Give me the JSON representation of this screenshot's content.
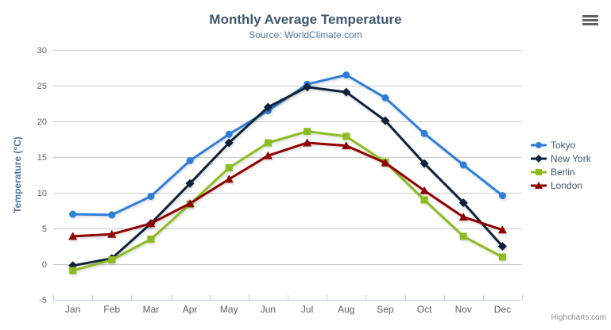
{
  "title": "Monthly Average Temperature",
  "subtitle": "Source: WorldClimate.com",
  "credits": "Highcharts.com",
  "context_menu_icon": "hamburger-icon",
  "colors": {
    "title": "#3e576f",
    "subtitle": "#4d759e",
    "axis_title": "#4d759e",
    "tick_labels": "#606060",
    "grid_line": "#cccccc",
    "x_axis_line": "#c0d0e0",
    "legend_text": "#3e576f",
    "credit_text": "#909090"
  },
  "chart_data": {
    "type": "line",
    "title": "Monthly Average Temperature",
    "subtitle": "Source: WorldClimate.com",
    "categories": [
      "Jan",
      "Feb",
      "Mar",
      "Apr",
      "May",
      "Jun",
      "Jul",
      "Aug",
      "Sep",
      "Oct",
      "Nov",
      "Dec"
    ],
    "series": [
      {
        "name": "Tokyo",
        "color": "#2f7ed8",
        "marker": "circle",
        "values": [
          7.0,
          6.9,
          9.5,
          14.5,
          18.2,
          21.5,
          25.2,
          26.5,
          23.3,
          18.3,
          13.9,
          9.6
        ]
      },
      {
        "name": "New York",
        "color": "#0d233a",
        "marker": "diamond",
        "values": [
          -0.2,
          0.8,
          5.7,
          11.3,
          17.0,
          22.0,
          24.8,
          24.1,
          20.1,
          14.1,
          8.6,
          2.5
        ]
      },
      {
        "name": "Berlin",
        "color": "#8bbc21",
        "marker": "square",
        "values": [
          -0.9,
          0.6,
          3.5,
          8.4,
          13.5,
          17.0,
          18.6,
          17.9,
          14.3,
          9.0,
          3.9,
          1.0
        ]
      },
      {
        "name": "London",
        "color": "#910000",
        "marker": "triangle-up",
        "values": [
          3.9,
          4.2,
          5.7,
          8.5,
          11.9,
          15.2,
          17.0,
          16.6,
          14.2,
          10.3,
          6.6,
          4.8
        ]
      }
    ],
    "xlabel": "",
    "ylabel": "Temperature (°C)",
    "ylim": [
      -5,
      30
    ],
    "yticks": [
      -5,
      0,
      5,
      10,
      15,
      20,
      25,
      30
    ],
    "grid": true,
    "legend_position": "right"
  }
}
